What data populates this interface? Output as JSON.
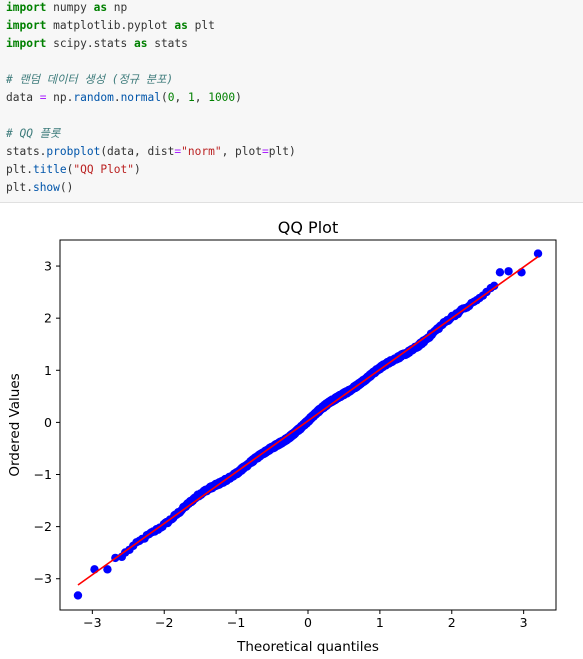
{
  "code": {
    "lines": [
      [
        {
          "t": "import",
          "c": "kw"
        },
        {
          "t": " numpy ",
          "c": ""
        },
        {
          "t": "as",
          "c": "kw"
        },
        {
          "t": " np",
          "c": ""
        }
      ],
      [
        {
          "t": "import",
          "c": "kw"
        },
        {
          "t": " matplotlib.pyplot ",
          "c": ""
        },
        {
          "t": "as",
          "c": "kw"
        },
        {
          "t": " plt",
          "c": ""
        }
      ],
      [
        {
          "t": "import",
          "c": "kw"
        },
        {
          "t": " scipy.stats ",
          "c": ""
        },
        {
          "t": "as",
          "c": "kw"
        },
        {
          "t": " stats",
          "c": ""
        }
      ],
      [],
      [
        {
          "t": "# 랜덤 데이터 생성 (정규 분포)",
          "c": "cm"
        }
      ],
      [
        {
          "t": "data ",
          "c": ""
        },
        {
          "t": "=",
          "c": "op"
        },
        {
          "t": " np.",
          "c": ""
        },
        {
          "t": "random",
          "c": "fn"
        },
        {
          "t": ".",
          "c": ""
        },
        {
          "t": "normal",
          "c": "fn"
        },
        {
          "t": "(",
          "c": ""
        },
        {
          "t": "0",
          "c": "num"
        },
        {
          "t": ", ",
          "c": ""
        },
        {
          "t": "1",
          "c": "num"
        },
        {
          "t": ", ",
          "c": ""
        },
        {
          "t": "1000",
          "c": "num"
        },
        {
          "t": ")",
          "c": ""
        }
      ],
      [],
      [
        {
          "t": "# QQ 플롯",
          "c": "cm"
        }
      ],
      [
        {
          "t": "stats.",
          "c": ""
        },
        {
          "t": "probplot",
          "c": "fn"
        },
        {
          "t": "(data, dist",
          "c": ""
        },
        {
          "t": "=",
          "c": "op"
        },
        {
          "t": "\"norm\"",
          "c": "str"
        },
        {
          "t": ", plot",
          "c": ""
        },
        {
          "t": "=",
          "c": "op"
        },
        {
          "t": "plt)",
          "c": ""
        }
      ],
      [
        {
          "t": "plt.",
          "c": ""
        },
        {
          "t": "title",
          "c": "fn"
        },
        {
          "t": "(",
          "c": ""
        },
        {
          "t": "\"QQ Plot\"",
          "c": "str"
        },
        {
          "t": ")",
          "c": ""
        }
      ],
      [
        {
          "t": "plt.",
          "c": ""
        },
        {
          "t": "show",
          "c": "fn"
        },
        {
          "t": "()",
          "c": ""
        }
      ]
    ]
  },
  "chart_data": {
    "type": "scatter",
    "title": "QQ Plot",
    "xlabel": "Theoretical quantiles",
    "ylabel": "Ordered Values",
    "xlim": [
      -3.45,
      3.45
    ],
    "ylim": [
      -3.6,
      3.5
    ],
    "xticks": [
      -3,
      -2,
      -1,
      0,
      1,
      2,
      3
    ],
    "yticks": [
      -3,
      -2,
      -1,
      0,
      1,
      2,
      3
    ],
    "xtick_labels": [
      "−3",
      "−2",
      "−1",
      "0",
      "1",
      "2",
      "3"
    ],
    "ytick_labels": [
      "−3",
      "−2",
      "−1",
      "0",
      "1",
      "2",
      "3"
    ],
    "point_color": "#0000ff",
    "line_color": "#ff0000",
    "n_points": 1000,
    "fit_line": {
      "x": [
        -3.2,
        3.2
      ],
      "y": [
        -3.12,
        3.18
      ]
    },
    "tail_points": [
      {
        "x": -3.2,
        "y": -3.32
      },
      {
        "x": -2.97,
        "y": -2.82
      },
      {
        "x": -2.79,
        "y": -2.82
      },
      {
        "x": -2.68,
        "y": -2.6
      },
      {
        "x": -2.59,
        "y": -2.58
      },
      {
        "x": 2.59,
        "y": 2.62
      },
      {
        "x": 2.67,
        "y": 2.88
      },
      {
        "x": 2.79,
        "y": 2.9
      },
      {
        "x": 2.97,
        "y": 2.88
      },
      {
        "x": 3.2,
        "y": 3.24
      }
    ],
    "grid": false,
    "legend": "none"
  }
}
